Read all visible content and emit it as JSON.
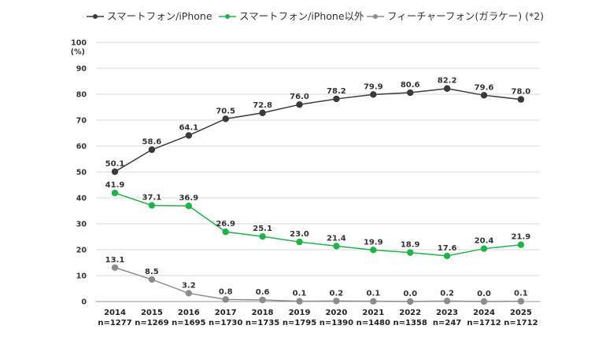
{
  "chart_data": {
    "type": "line",
    "ylabel": "(%)",
    "ylim": [
      0,
      100
    ],
    "yticks": [
      0,
      10,
      20,
      30,
      40,
      50,
      60,
      70,
      80,
      90,
      100
    ],
    "grid": true,
    "legend_position": "top",
    "categories": [
      "2014",
      "2015",
      "2016",
      "2017",
      "2018",
      "2019",
      "2020",
      "2021",
      "2022",
      "2023",
      "2024",
      "2025"
    ],
    "sample_sizes": [
      "n=1277",
      "n=1269",
      "n=1695",
      "n=1730",
      "n=1735",
      "n=1795",
      "n=1390",
      "n=1480",
      "n=1358",
      "n=247",
      "n=1712",
      "n=1712"
    ],
    "series": [
      {
        "name": "スマートフォン/iPhone",
        "color": "#3a3a3a",
        "values": [
          50.1,
          58.6,
          64.1,
          70.5,
          72.8,
          76.0,
          78.2,
          79.9,
          80.6,
          82.2,
          79.6,
          78.0
        ],
        "labels": [
          "50.1",
          "58.6",
          "64.1",
          "70.5",
          "72.8",
          "76.0",
          "78.2",
          "79.9",
          "80.6",
          "82.2",
          "79.6",
          "78.0"
        ]
      },
      {
        "name": "スマートフォン/iPhone以外",
        "color": "#22b24c",
        "values": [
          41.9,
          37.1,
          36.9,
          26.9,
          25.1,
          23.0,
          21.4,
          19.9,
          18.9,
          17.6,
          20.4,
          21.9
        ],
        "labels": [
          "41.9",
          "37.1",
          "36.9",
          "26.9",
          "25.1",
          "23.0",
          "21.4",
          "19.9",
          "18.9",
          "17.6",
          "20.4",
          "21.9"
        ]
      },
      {
        "name": "フィーチャーフォン(ガラケー) (*2)",
        "color": "#8c8c8c",
        "values": [
          13.1,
          8.5,
          3.2,
          0.8,
          0.6,
          0.1,
          0.2,
          0.1,
          0.0,
          0.2,
          0.0,
          0.1
        ],
        "labels": [
          "13.1",
          "8.5",
          "3.2",
          "0.8",
          "0.6",
          "0.1",
          "0.2",
          "0.1",
          "0.0",
          "0.2",
          "0.0",
          "0.1"
        ]
      }
    ]
  }
}
